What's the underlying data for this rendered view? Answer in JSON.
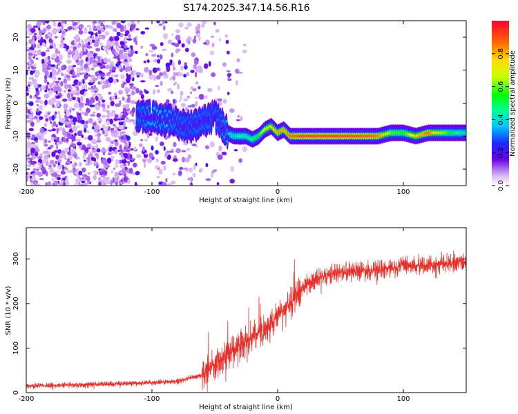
{
  "title": "S174.2025.347.14.56.R16",
  "chart_data": [
    {
      "type": "heatmap",
      "xlabel": "Height of straight line (km)",
      "ylabel": "Frequency (Hz)",
      "xlim": [
        -200,
        150
      ],
      "ylim": [
        -25,
        25
      ],
      "xticks": [
        -200,
        -100,
        0,
        100
      ],
      "yticks": [
        -20,
        -10,
        0,
        10,
        20
      ],
      "colorbar": {
        "label": "Normalized spectral amplitude",
        "range": [
          0,
          1
        ],
        "ticks": [
          "0.0",
          "0.2",
          "0.4",
          "0.6",
          "0.8"
        ],
        "tick_values": [
          0.0,
          0.2,
          0.4,
          0.6,
          0.8
        ]
      },
      "ridge": {
        "x": [
          -110,
          -100,
          -90,
          -80,
          -70,
          -60,
          -50,
          -45,
          -40,
          -35,
          -30,
          -25,
          -20,
          -15,
          -10,
          -5,
          0,
          5,
          10,
          20,
          40,
          60,
          80,
          90,
          100,
          110,
          120,
          130,
          140,
          150
        ],
        "y": [
          -4,
          -4,
          -5,
          -6,
          -7,
          -6,
          -4,
          -6,
          -9,
          -10,
          -10,
          -10,
          -11,
          -10,
          -8,
          -7,
          -9,
          -8,
          -10,
          -10,
          -10,
          -10,
          -10,
          -9,
          -9,
          -10,
          -9,
          -9,
          -9,
          -9
        ],
        "amplitude": [
          0.3,
          0.35,
          0.35,
          0.3,
          0.3,
          0.3,
          0.3,
          0.3,
          0.35,
          0.4,
          0.45,
          0.45,
          0.5,
          0.55,
          0.7,
          0.75,
          0.8,
          0.8,
          0.85,
          0.9,
          0.9,
          0.9,
          0.85,
          0.6,
          0.55,
          0.75,
          0.85,
          0.65,
          0.5,
          0.4
        ]
      }
    },
    {
      "type": "line",
      "xlabel": "Height of straight line (km)",
      "ylabel": "SNR (10 * v/v)",
      "xlim": [
        -200,
        150
      ],
      "ylim": [
        0,
        370
      ],
      "xticks": [
        -200,
        -100,
        0,
        100
      ],
      "yticks": [
        0,
        100,
        200,
        300
      ],
      "color": "#e8302a",
      "trend": {
        "x": [
          -200,
          -150,
          -100,
          -80,
          -60,
          -50,
          -40,
          -30,
          -20,
          -10,
          0,
          10,
          20,
          30,
          40,
          60,
          80,
          100,
          120,
          150
        ],
        "y": [
          15,
          18,
          22,
          25,
          40,
          65,
          85,
          105,
          125,
          140,
          170,
          200,
          235,
          255,
          265,
          275,
          275,
          285,
          285,
          295
        ]
      }
    }
  ]
}
